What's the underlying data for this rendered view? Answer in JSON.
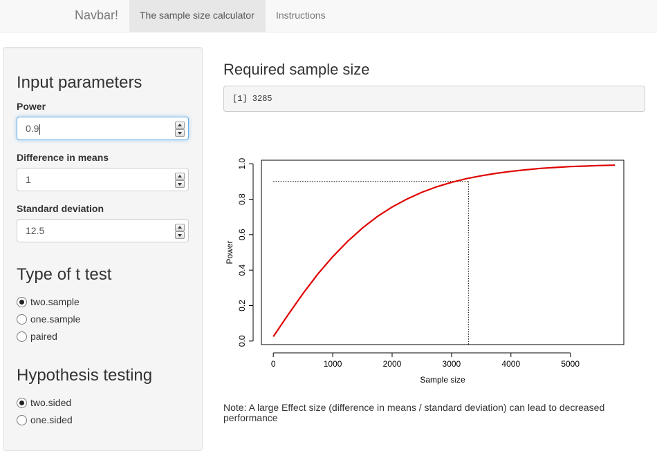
{
  "navbar": {
    "brand": "Navbar!",
    "tabs": [
      {
        "label": "The sample size calculator",
        "active": true
      },
      {
        "label": "Instructions",
        "active": false
      }
    ]
  },
  "sidebar": {
    "heading": "Input parameters",
    "fields": [
      {
        "label": "Power",
        "value": "0.9"
      },
      {
        "label": "Difference in means",
        "value": "1"
      },
      {
        "label": "Standard deviation",
        "value": "12.5"
      }
    ],
    "test_type": {
      "heading": "Type of t test",
      "options": [
        "two.sample",
        "one.sample",
        "paired"
      ],
      "selected": "two.sample"
    },
    "hypothesis": {
      "heading": "Hypothesis testing",
      "options": [
        "two.sided",
        "one.sided"
      ],
      "selected": "two.sided"
    }
  },
  "main": {
    "title": "Required sample size",
    "output": "[1] 3285",
    "note": "Note: A large Effect size (difference in means / standard deviation) can lead to decreased performance"
  },
  "chart_data": {
    "type": "line",
    "title": "",
    "xlabel": "Sample size",
    "ylabel": "Power",
    "xlim": [
      -200,
      5900
    ],
    "ylim": [
      -0.02,
      1.02
    ],
    "xticks": [
      0,
      1000,
      2000,
      3000,
      4000,
      5000
    ],
    "yticks": [
      0.0,
      0.2,
      0.4,
      0.6,
      0.8,
      1.0
    ],
    "xtick_labels": [
      "0",
      "1000",
      "2000",
      "3000",
      "4000",
      "5000"
    ],
    "ytick_labels": [
      "0.0",
      "0.2",
      "0.4",
      "0.6",
      "0.8",
      "1.0"
    ],
    "series": [
      {
        "color": "#e00000",
        "x": [
          0,
          250,
          500,
          750,
          1000,
          1250,
          1500,
          1750,
          2000,
          2250,
          2500,
          2750,
          3000,
          3250,
          3500,
          3750,
          4000,
          4250,
          4500,
          4750,
          5000,
          5250,
          5500,
          5750
        ],
        "y": [
          0.025,
          0.149,
          0.268,
          0.378,
          0.476,
          0.562,
          0.637,
          0.702,
          0.756,
          0.801,
          0.839,
          0.87,
          0.895,
          0.916,
          0.932,
          0.946,
          0.957,
          0.966,
          0.974,
          0.979,
          0.984,
          0.987,
          0.99,
          0.992
        ]
      }
    ],
    "reference": {
      "x": 3285,
      "y": 0.9,
      "style": "dotted"
    },
    "grid": false,
    "legend": "none"
  }
}
